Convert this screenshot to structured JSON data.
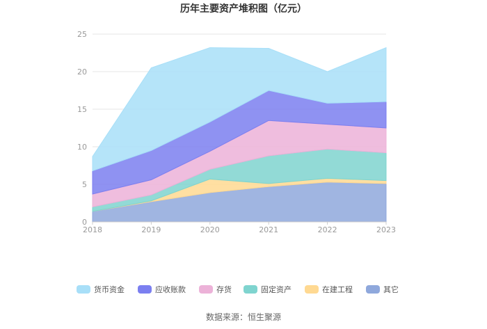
{
  "chart_data": {
    "type": "area",
    "stacked": true,
    "title": "历年主要资产堆积图（亿元）",
    "categories": [
      "2018",
      "2019",
      "2020",
      "2021",
      "2022",
      "2023"
    ],
    "ylim": [
      0,
      25
    ],
    "yticks": [
      "0",
      "5",
      "10",
      "15",
      "20",
      "25"
    ],
    "grid": true,
    "legend_position": "bottom",
    "series": [
      {
        "name": "其它",
        "color": "#8fa8dc",
        "values": [
          1.4,
          2.7,
          3.9,
          4.7,
          5.3,
          5.1
        ]
      },
      {
        "name": "在建工程",
        "color": "#ffd992",
        "values": [
          0.0,
          0.1,
          1.8,
          0.4,
          0.5,
          0.4
        ]
      },
      {
        "name": "固定资产",
        "color": "#7fd4cf",
        "values": [
          0.6,
          0.8,
          1.3,
          3.7,
          3.9,
          3.7
        ]
      },
      {
        "name": "存货",
        "color": "#ecb2d8",
        "values": [
          1.7,
          2.0,
          2.4,
          4.7,
          3.3,
          3.3
        ]
      },
      {
        "name": "应收账款",
        "color": "#7b7ff0",
        "values": [
          3.1,
          3.9,
          3.9,
          4.0,
          2.8,
          3.5
        ]
      },
      {
        "name": "货币资金",
        "color": "#a8dff8",
        "values": [
          1.9,
          11.0,
          9.9,
          5.6,
          4.2,
          7.2
        ]
      }
    ]
  },
  "source_text": "数据来源：恒生聚源"
}
